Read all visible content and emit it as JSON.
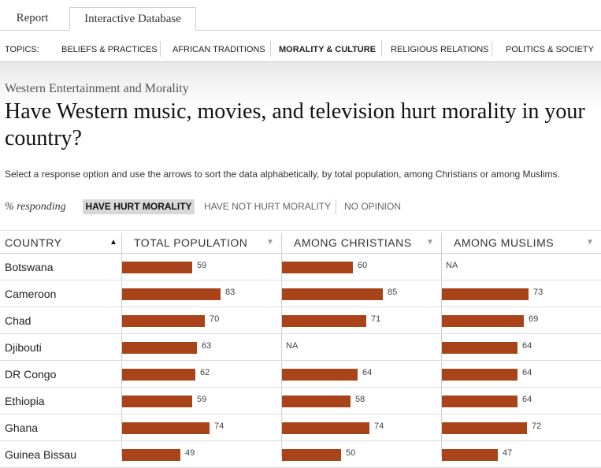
{
  "tabs": [
    {
      "label": "Report"
    },
    {
      "label": "Interactive Database"
    }
  ],
  "topics": {
    "label": "TOPICS:",
    "items": [
      {
        "label": "BELIEFS & PRACTICES"
      },
      {
        "label": "AFRICAN TRADITIONS"
      },
      {
        "label": "MORALITY & CULTURE",
        "active": true
      },
      {
        "label": "RELIGIOUS RELATIONS"
      },
      {
        "label": "POLITICS & SOCIETY"
      }
    ]
  },
  "question": {
    "section": "Western Entertainment and Morality",
    "title": "Have Western music, movies, and television hurt morality in your country?",
    "instructions": "Select a response option and use the arrows to sort the data alphabetically, by total population, among Christians or among Muslims."
  },
  "responding": {
    "label": "% responding",
    "options": [
      {
        "label": "HAVE HURT MORALITY",
        "selected": true
      },
      {
        "label": "HAVE NOT HURT MORALITY"
      },
      {
        "label": "NO OPINION"
      }
    ]
  },
  "table": {
    "columns": [
      {
        "label": "COUNTRY",
        "arrow": "▲"
      },
      {
        "label": "TOTAL POPULATION",
        "arrow": "▼"
      },
      {
        "label": "AMONG CHRISTIANS",
        "arrow": "▼"
      },
      {
        "label": "AMONG MUSLIMS",
        "arrow": "▼"
      }
    ],
    "na_label": "NA",
    "bar_color": "#a8431a",
    "rows": [
      {
        "country": "Botswana",
        "total": "59",
        "christians": "60",
        "muslims": "NA"
      },
      {
        "country": "Cameroon",
        "total": "83",
        "christians": "85",
        "muslims": "73"
      },
      {
        "country": "Chad",
        "total": "70",
        "christians": "71",
        "muslims": "69"
      },
      {
        "country": "Djibouti",
        "total": "63",
        "christians": "NA",
        "muslims": "64"
      },
      {
        "country": "DR Congo",
        "total": "62",
        "christians": "64",
        "muslims": "64"
      },
      {
        "country": "Ethiopia",
        "total": "59",
        "christians": "58",
        "muslims": "64"
      },
      {
        "country": "Ghana",
        "total": "74",
        "christians": "74",
        "muslims": "72"
      },
      {
        "country": "Guinea Bissau",
        "total": "49",
        "christians": "50",
        "muslims": "47"
      }
    ]
  }
}
